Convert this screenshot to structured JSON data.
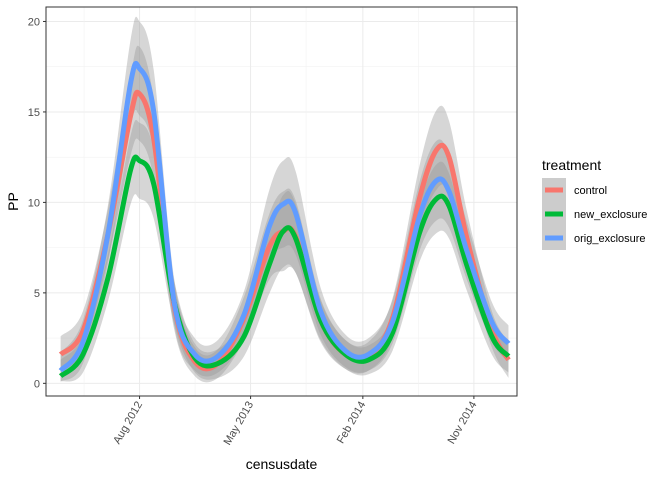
{
  "chart_data": {
    "type": "line",
    "xlabel": "censusdate",
    "ylabel": "PP",
    "ylim": [
      -0.7,
      20.8
    ],
    "xlim": [
      "2011-12-15",
      "2015-02-15"
    ],
    "grid": true,
    "y_ticks": [
      0,
      5,
      10,
      15,
      20
    ],
    "x_ticks": [
      {
        "label": "Aug 2012",
        "date": "2012-08-01"
      },
      {
        "label": "May 2013",
        "date": "2013-05-01"
      },
      {
        "label": "Feb 2014",
        "date": "2014-02-01"
      },
      {
        "label": "Nov 2014",
        "date": "2014-11-01"
      }
    ],
    "legend": {
      "title": "treatment",
      "position": "right"
    },
    "series": [
      {
        "name": "control",
        "color": "#F8766D",
        "x": [
          "2012-01-20",
          "2012-03-15",
          "2012-05-15",
          "2012-07-10",
          "2012-08-01",
          "2012-09-05",
          "2012-10-25",
          "2012-12-15",
          "2013-02-10",
          "2013-04-15",
          "2013-06-15",
          "2013-07-20",
          "2013-08-20",
          "2013-10-20",
          "2013-12-20",
          "2014-02-15",
          "2014-04-15",
          "2014-06-20",
          "2014-08-01",
          "2014-09-01",
          "2014-10-15",
          "2014-12-15",
          "2015-01-25"
        ],
        "y": [
          1.6,
          2.9,
          8.2,
          14.8,
          16.0,
          13.5,
          4.3,
          1.2,
          1.1,
          3.6,
          7.5,
          8.4,
          8.1,
          3.5,
          1.6,
          1.5,
          3.6,
          10.2,
          12.9,
          12.5,
          8.0,
          3.0,
          1.3
        ],
        "band": [
          1.0,
          1.1,
          1.4,
          2.2,
          2.6,
          2.2,
          1.3,
          0.8,
          0.8,
          1.2,
          1.8,
          2.2,
          2.0,
          1.2,
          0.8,
          0.8,
          1.1,
          1.8,
          2.2,
          2.0,
          1.5,
          1.0,
          1.0
        ]
      },
      {
        "name": "new_exclosure",
        "color": "#00BA38",
        "x": [
          "2012-01-20",
          "2012-03-15",
          "2012-05-15",
          "2012-07-10",
          "2012-08-01",
          "2012-09-05",
          "2012-10-25",
          "2012-12-15",
          "2013-02-10",
          "2013-04-15",
          "2013-06-15",
          "2013-07-20",
          "2013-08-20",
          "2013-10-20",
          "2013-12-20",
          "2014-02-15",
          "2014-04-15",
          "2014-06-20",
          "2014-08-01",
          "2014-09-01",
          "2014-10-15",
          "2014-12-15",
          "2015-01-25"
        ],
        "y": [
          0.4,
          1.6,
          5.8,
          11.8,
          12.3,
          11.0,
          4.5,
          1.4,
          1.1,
          2.6,
          6.5,
          8.4,
          8.0,
          3.5,
          1.6,
          1.3,
          2.8,
          8.3,
          10.2,
          9.8,
          6.5,
          2.6,
          1.5
        ],
        "band": [
          0.9,
          1.0,
          1.3,
          1.9,
          2.1,
          1.9,
          1.2,
          0.8,
          0.8,
          1.1,
          1.6,
          2.0,
          1.9,
          1.1,
          0.8,
          0.8,
          1.0,
          1.6,
          1.9,
          1.8,
          1.4,
          1.0,
          0.9
        ]
      },
      {
        "name": "orig_exclosure",
        "color": "#619CFF",
        "x": [
          "2012-01-20",
          "2012-03-15",
          "2012-05-15",
          "2012-07-10",
          "2012-08-01",
          "2012-09-05",
          "2012-10-25",
          "2012-12-15",
          "2013-02-10",
          "2013-04-15",
          "2013-06-15",
          "2013-07-20",
          "2013-08-20",
          "2013-10-20",
          "2013-12-20",
          "2014-02-15",
          "2014-04-15",
          "2014-06-20",
          "2014-08-01",
          "2014-09-01",
          "2014-10-15",
          "2014-12-15",
          "2015-01-25"
        ],
        "y": [
          0.7,
          2.3,
          8.2,
          16.6,
          17.4,
          15.0,
          4.5,
          1.6,
          1.5,
          3.8,
          8.6,
          9.9,
          9.4,
          4.0,
          1.8,
          1.6,
          3.4,
          9.2,
          11.2,
          10.6,
          7.3,
          3.4,
          2.2
        ],
        "band": [
          1.0,
          1.2,
          1.6,
          2.4,
          2.6,
          2.3,
          1.3,
          0.9,
          0.9,
          1.3,
          2.0,
          2.4,
          2.3,
          1.3,
          0.9,
          0.9,
          1.2,
          1.9,
          2.2,
          2.0,
          1.6,
          1.1,
          1.0
        ]
      }
    ]
  }
}
